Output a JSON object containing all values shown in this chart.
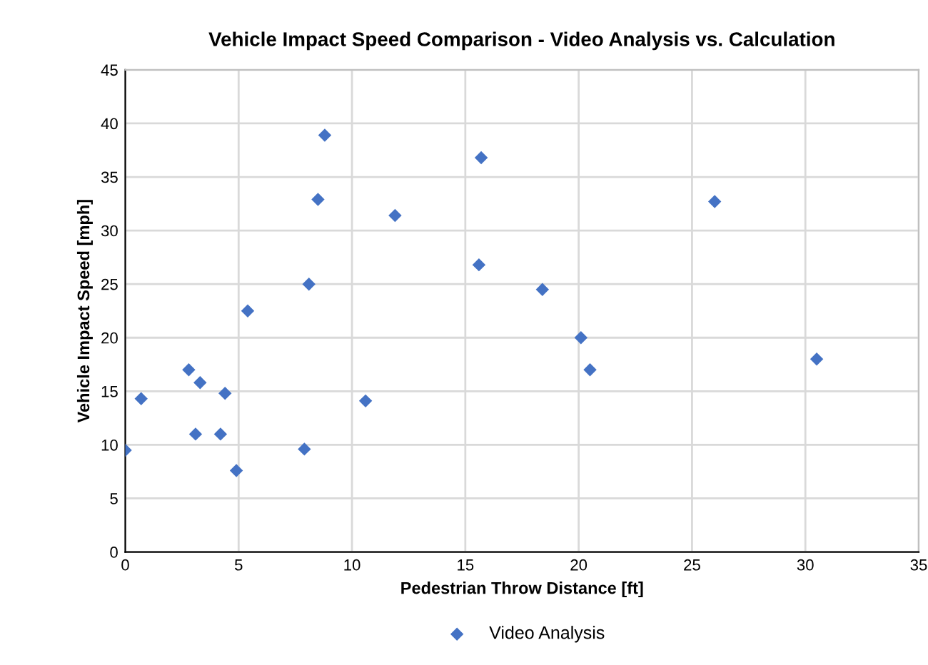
{
  "chart_data": {
    "type": "scatter",
    "title": "Vehicle Impact Speed Comparison - Video Analysis vs. Calculation",
    "xlabel": "Pedestrian Throw Distance [ft]",
    "ylabel": "Vehicle Impact Speed [mph]",
    "series": [
      {
        "name": "Video Analysis",
        "color": "#4472c4",
        "x": [
          0,
          0.7,
          2.8,
          3.3,
          3.1,
          4.2,
          4.4,
          4.9,
          5.4,
          7.9,
          8.1,
          8.5,
          8.8,
          10.6,
          11.9,
          15.6,
          15.7,
          18.4,
          20.1,
          20.5,
          26.0,
          30.5
        ],
        "values": [
          9.5,
          14.3,
          17.0,
          15.8,
          11.0,
          11.0,
          14.8,
          7.6,
          22.5,
          9.6,
          25.0,
          32.9,
          38.9,
          14.1,
          31.4,
          26.8,
          36.8,
          24.5,
          20.0,
          17.0,
          32.7,
          18.0
        ]
      }
    ],
    "xlim": [
      0,
      35
    ],
    "xticks": [
      0,
      5,
      10,
      15,
      20,
      25,
      30,
      35
    ],
    "ylim": [
      0,
      45
    ],
    "yticks": [
      0,
      5,
      10,
      15,
      20,
      25,
      30,
      35,
      40,
      45
    ],
    "grid": true,
    "legend": "bottom",
    "marker": "diamond"
  }
}
